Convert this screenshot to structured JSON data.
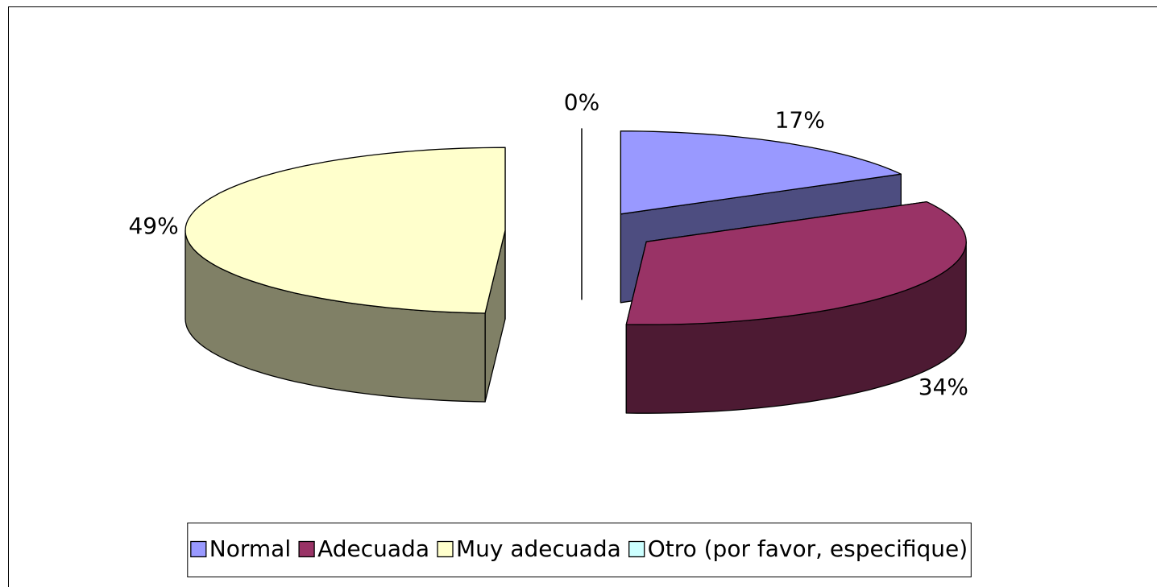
{
  "chart_data": {
    "type": "pie",
    "categories": [
      "Normal",
      "Adecuada",
      "Muy adecuada",
      "Otro (por favor, especifique)"
    ],
    "values": [
      17,
      34,
      49,
      0
    ],
    "value_labels": [
      "17%",
      "34%",
      "49%",
      "0%"
    ],
    "colors": [
      "#9999ff",
      "#993366",
      "#ffffcc",
      "#ccffff"
    ],
    "legend": "bottom"
  }
}
